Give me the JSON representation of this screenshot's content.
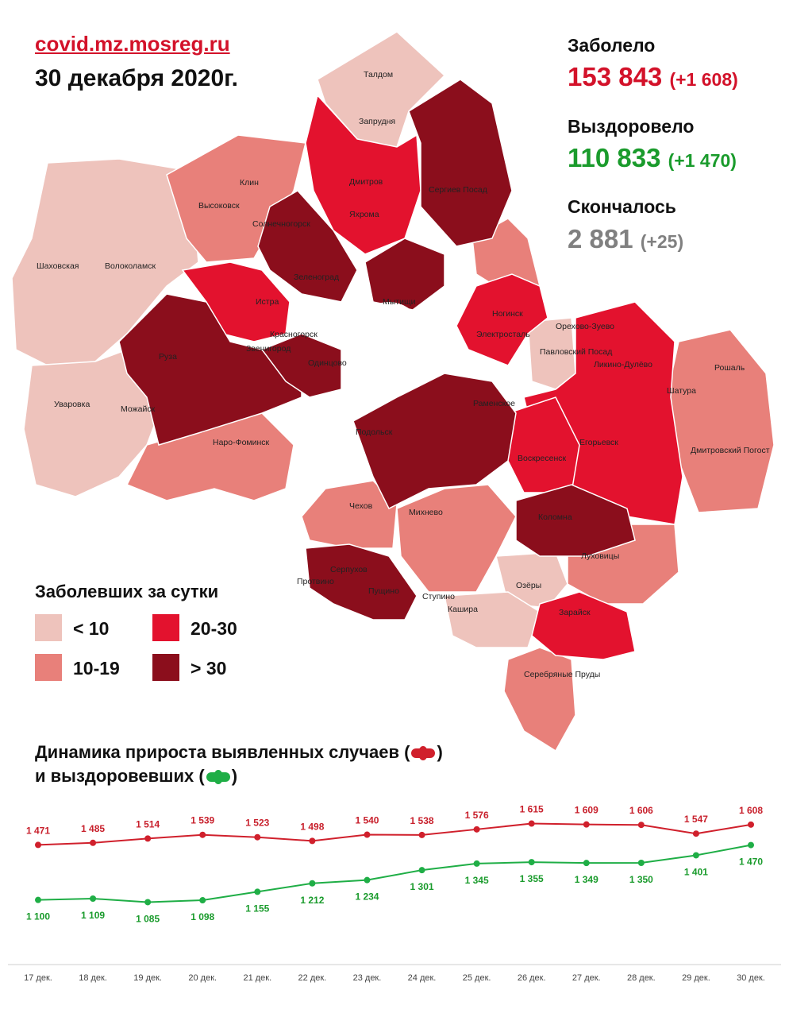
{
  "header": {
    "site": "covid.mz.mosreg.ru",
    "date": "30 декабря 2020г."
  },
  "stats": {
    "cases": {
      "label": "Заболело",
      "value": "153 843",
      "delta": "(+1 608)"
    },
    "recovered": {
      "label": "Выздоровело",
      "value": "110 833",
      "delta": "(+1 470)"
    },
    "deaths": {
      "label": "Скончалось",
      "value": "2 881",
      "delta": "(+25)"
    }
  },
  "legend": {
    "title": "Заболевших за сутки",
    "items": [
      {
        "label": "< 10",
        "color": "#eec3bc"
      },
      {
        "label": "10-19",
        "color": "#e8807a"
      },
      {
        "label": "20-30",
        "color": "#e3122e"
      },
      {
        "label": "> 30",
        "color": "#8b0e1c"
      }
    ]
  },
  "map_labels": [
    "Талдом",
    "Запрудня",
    "Клин",
    "Высоковск",
    "Дмитров",
    "Яхрома",
    "Сергиев Посад",
    "Солнечногорск",
    "Шаховская",
    "Волоколамск",
    "Зеленоград",
    "Мытищи",
    "Истра",
    "Красногорск",
    "Ногинск",
    "Электросталь",
    "Орехово-Зуево",
    "Руза",
    "Звенигород",
    "Одинцово",
    "Павловский Посад",
    "Ликино-Дулёво",
    "Рошаль",
    "Шатура",
    "Уваровка",
    "Можайск",
    "Раменское",
    "Егорьевск",
    "Наро-Фоминск",
    "Подольск",
    "Воскресенск",
    "Дмитровский Погост",
    "Чехов",
    "Михнево",
    "Коломна",
    "Серпухов",
    "Пущино",
    "Протвино",
    "Ступино",
    "Озёры",
    "Луховицы",
    "Кашира",
    "Зарайск",
    "Серебряные Пруды"
  ],
  "chart": {
    "title_line1": "Динамика прироста выявленных случаев (",
    "title_line1_end": ")",
    "title_line2": "и выздоровевших (",
    "title_line2_end": ")"
  },
  "chart_data": {
    "type": "line",
    "categories": [
      "17 дек.",
      "18 дек.",
      "19 дек.",
      "20 дек.",
      "21 дек.",
      "22 дек.",
      "23 дек.",
      "24 дек.",
      "25 дек.",
      "26 дек.",
      "27 дек.",
      "28 дек.",
      "29 дек.",
      "30 дек."
    ],
    "series": [
      {
        "color": "#d0202c",
        "values": [
          1471,
          1485,
          1514,
          1539,
          1523,
          1498,
          1540,
          1538,
          1576,
          1615,
          1609,
          1606,
          1547,
          1608
        ],
        "labels": [
          "1 471",
          "1 485",
          "1 514",
          "1 539",
          "1 523",
          "1 498",
          "1 540",
          "1 538",
          "1 576",
          "1 615",
          "1 609",
          "1 606",
          "1 547",
          "1 608"
        ]
      },
      {
        "color": "#1fae46",
        "values": [
          1100,
          1109,
          1085,
          1098,
          1155,
          1212,
          1234,
          1301,
          1345,
          1355,
          1349,
          1350,
          1401,
          1470
        ],
        "labels": [
          "1 100",
          "1 109",
          "1 085",
          "1 098",
          "1 155",
          "1 212",
          "1 234",
          "1 301",
          "1 345",
          "1 355",
          "1 349",
          "1 350",
          "1 401",
          "1 470"
        ]
      }
    ],
    "legend": "in title"
  }
}
